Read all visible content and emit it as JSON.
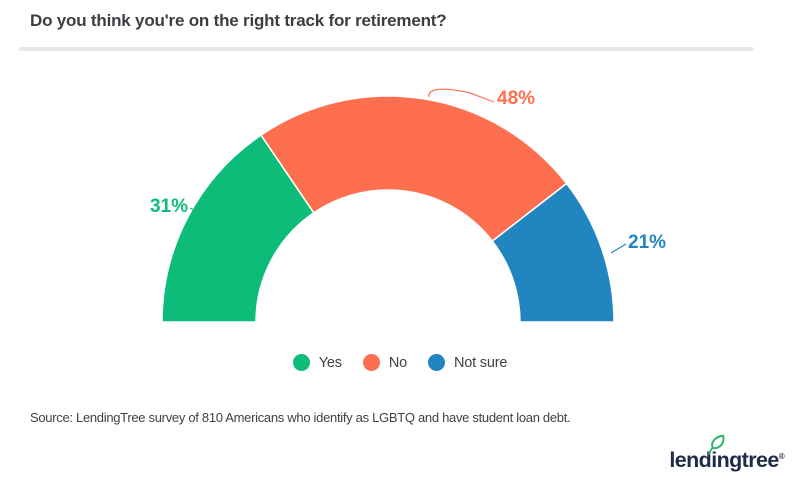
{
  "header": {
    "title": "Do you think you're on the right track for retirement?"
  },
  "chart_data": {
    "type": "pie",
    "variant": "half-donut",
    "title": "Do you think you're on the right track for retirement?",
    "categories": [
      "Yes",
      "No",
      "Not sure"
    ],
    "values": [
      31,
      48,
      21
    ],
    "unit": "%",
    "data_labels": [
      "31%",
      "48%",
      "21%"
    ],
    "colors": [
      "#0dbc79",
      "#fe6f50",
      "#2186c0"
    ],
    "start_angle_deg": 180,
    "end_angle_deg": 0,
    "legend_position": "bottom",
    "grid": false
  },
  "footer": {
    "source": "Source: LendingTree survey of 810 Americans who identify as LGBTQ and have student loan debt.",
    "logo": {
      "text": "lendingtree",
      "registered": "®",
      "icon": "leaf-icon",
      "leaf_color": "#2db56f",
      "text_color": "#1f2b49"
    }
  },
  "colors": {
    "title_text": "#3b3f42",
    "source_text": "#3e4246",
    "divider": "#e8e8e8"
  }
}
